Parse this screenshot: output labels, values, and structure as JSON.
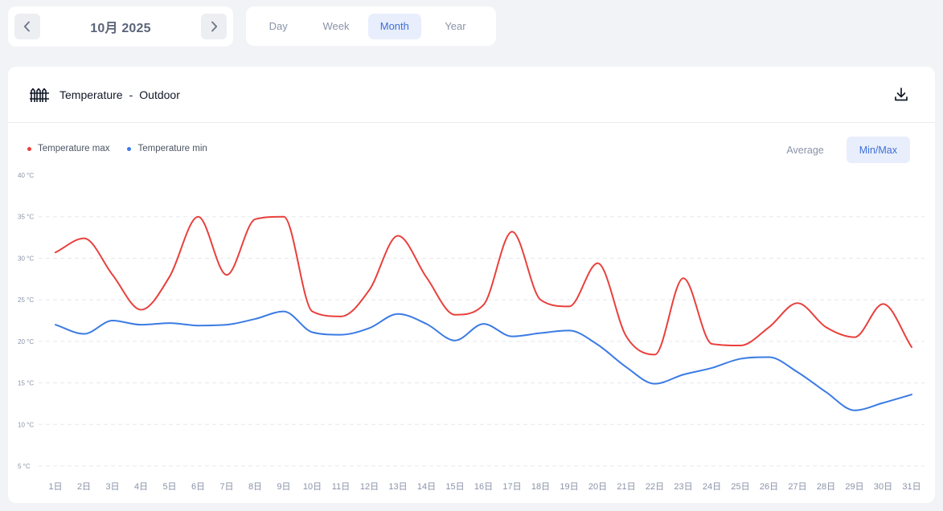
{
  "toolbar": {
    "period_label": "10月 2025",
    "prev_icon": "chevron-left-icon",
    "next_icon": "chevron-right-icon",
    "tabs": [
      {
        "label": "Day"
      },
      {
        "label": "Week"
      },
      {
        "label": "Month",
        "active": true
      },
      {
        "label": "Year"
      }
    ]
  },
  "card": {
    "title": "Temperature",
    "separator": "-",
    "subtitle": "Outdoor",
    "sensor_icon": "fence-icon",
    "download_icon": "download-icon",
    "mode_options": [
      {
        "label": "Average"
      },
      {
        "label": "Min/Max",
        "active": true
      }
    ]
  },
  "colors": {
    "max": "#e8403c",
    "min": "#3b7be4",
    "accent": "#3f6fd8"
  },
  "chart_data": {
    "type": "line",
    "x": [
      "1日",
      "2日",
      "3日",
      "4日",
      "5日",
      "6日",
      "7日",
      "8日",
      "9日",
      "10日",
      "11日",
      "12日",
      "13日",
      "14日",
      "15日",
      "16日",
      "17日",
      "18日",
      "19日",
      "20日",
      "21日",
      "22日",
      "23日",
      "24日",
      "25日",
      "26日",
      "27日",
      "28日",
      "29日",
      "30日",
      "31日"
    ],
    "y_ticks": [
      "40 °C",
      "35 °C",
      "30 °C",
      "25 °C",
      "20 °C",
      "15 °C",
      "10 °C",
      "5 °C"
    ],
    "ylim": [
      5,
      40
    ],
    "grid": true,
    "legend_position": "top-left",
    "series": [
      {
        "name": "Temperature max",
        "values": [
          30.7,
          32.4,
          28.0,
          23.8,
          27.8,
          35.0,
          28.0,
          34.7,
          35.0,
          23.6,
          23.0,
          26.2,
          32.7,
          27.7,
          23.2,
          24.4,
          33.2,
          25.0,
          24.2,
          29.4,
          20.6,
          18.4,
          27.6,
          19.7,
          19.5,
          21.7,
          24.6,
          21.7,
          20.5,
          24.5,
          19.3
        ]
      },
      {
        "name": "Temperature min",
        "values": [
          22.0,
          20.9,
          22.5,
          22.0,
          22.2,
          21.9,
          22.0,
          22.7,
          23.6,
          21.1,
          20.8,
          21.6,
          23.3,
          22.1,
          20.1,
          22.1,
          20.6,
          21.0,
          21.3,
          19.6,
          16.9,
          14.9,
          16.0,
          16.8,
          17.9,
          18.1,
          16.3,
          13.9,
          11.7,
          12.6,
          13.6
        ]
      }
    ]
  }
}
